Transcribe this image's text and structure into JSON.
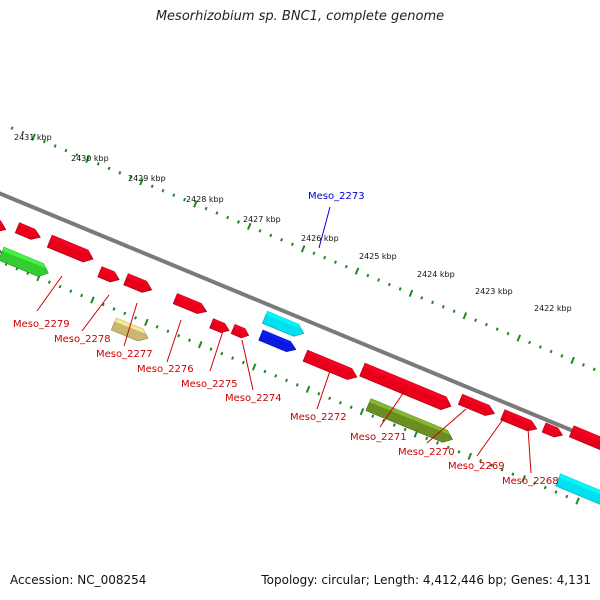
{
  "title": "Mesorhizobium sp. BNC1, complete genome",
  "footer": {
    "accession": "Accession: NC_008254",
    "topology": "Topology: circular; Length: 4,412,446 bp; Genes: 4,131"
  },
  "colors": {
    "backbone": "#7a7a7a",
    "tick": "#1e8a1e",
    "label_red": "#cc0000",
    "label_blue": "#0000cc",
    "gene_red": "#e8001a",
    "gene_cyan": "#00e0f0",
    "gene_blue": "#0a18e0",
    "gene_green": "#33cc33",
    "gene_olive": "#6b8e23",
    "gene_gray": "#6e6e6e",
    "gene_khaki": "#c8b870"
  },
  "ruler": {
    "labels": [
      "2431 kbp",
      "2430 kbp",
      "2429 kbp",
      "2428 kbp",
      "2427 kbp",
      "2426 kbp",
      "2425 kbp",
      "2424 kbp",
      "2423 kbp",
      "2422 kbp"
    ]
  },
  "gene_labels": [
    {
      "name": "Meso_2279",
      "color": "red"
    },
    {
      "name": "Meso_2278",
      "color": "red"
    },
    {
      "name": "Meso_2277",
      "color": "red"
    },
    {
      "name": "Meso_2276",
      "color": "red"
    },
    {
      "name": "Meso_2275",
      "color": "red"
    },
    {
      "name": "Meso_2274",
      "color": "red"
    },
    {
      "name": "Meso_2273",
      "color": "blue"
    },
    {
      "name": "Meso_2272",
      "color": "red"
    },
    {
      "name": "Meso_2271",
      "color": "red"
    },
    {
      "name": "Meso_2270",
      "color": "red"
    },
    {
      "name": "Meso_2269",
      "color": "red"
    },
    {
      "name": "Meso_2268",
      "color": "red"
    }
  ],
  "features": [
    {
      "color": "gene_red"
    },
    {
      "color": "gene_red"
    },
    {
      "color": "gene_red"
    },
    {
      "color": "gene_red"
    },
    {
      "color": "gene_red"
    },
    {
      "color": "gene_red"
    },
    {
      "color": "gene_red"
    },
    {
      "color": "gene_red"
    },
    {
      "color": "gene_red"
    },
    {
      "color": "gene_red"
    },
    {
      "color": "gene_red"
    },
    {
      "color": "gene_red"
    },
    {
      "color": "gene_red"
    },
    {
      "color": "gene_red"
    },
    {
      "color": "gene_cyan"
    },
    {
      "color": "gene_gray"
    },
    {
      "color": "gene_green"
    },
    {
      "color": "gene_khaki"
    },
    {
      "color": "gene_cyan"
    },
    {
      "color": "gene_blue"
    },
    {
      "color": "gene_olive"
    },
    {
      "color": "gene_cyan"
    }
  ]
}
